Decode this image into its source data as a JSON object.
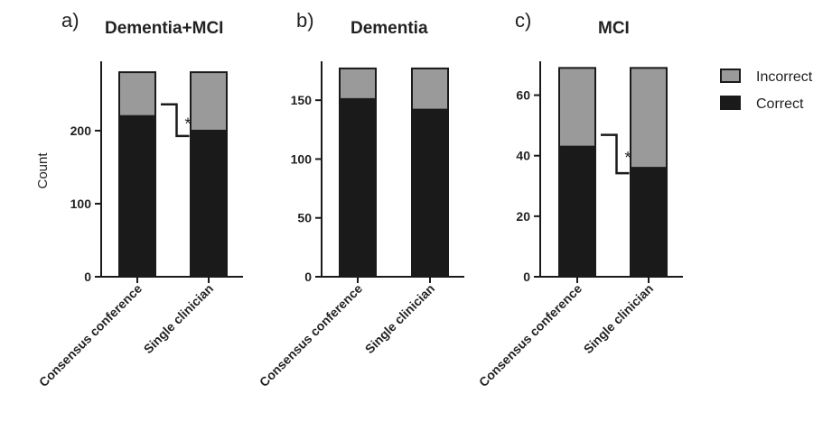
{
  "chart_data": [
    {
      "type": "bar",
      "stacked": true,
      "panel": "a)",
      "title": "Dementia+MCI",
      "ylabel": "Count",
      "ylim": [
        0,
        290
      ],
      "yticks": [
        0,
        100,
        200
      ],
      "categories": [
        "Consensus conference",
        "Single clinician"
      ],
      "series": [
        {
          "name": "Correct",
          "values": [
            220,
            200
          ],
          "color": "#1a1a1a"
        },
        {
          "name": "Incorrect",
          "values": [
            60,
            80
          ],
          "color": "#9a9a9a"
        }
      ],
      "significance": "*"
    },
    {
      "type": "bar",
      "stacked": true,
      "panel": "b)",
      "title": "Dementia",
      "ylabel": "",
      "ylim": [
        0,
        180
      ],
      "yticks": [
        0,
        50,
        100,
        150
      ],
      "categories": [
        "Consensus conference",
        "Single clinician"
      ],
      "series": [
        {
          "name": "Correct",
          "values": [
            151,
            142
          ],
          "color": "#1a1a1a"
        },
        {
          "name": "Incorrect",
          "values": [
            26,
            35
          ],
          "color": "#9a9a9a"
        }
      ],
      "significance": ""
    },
    {
      "type": "bar",
      "stacked": true,
      "panel": "c)",
      "title": "MCI",
      "ylabel": "",
      "ylim": [
        0,
        70
      ],
      "yticks": [
        0,
        20,
        40,
        60
      ],
      "categories": [
        "Consensus conference",
        "Single clinician"
      ],
      "series": [
        {
          "name": "Correct",
          "values": [
            43,
            36
          ],
          "color": "#1a1a1a"
        },
        {
          "name": "Incorrect",
          "values": [
            26,
            33
          ],
          "color": "#9a9a9a"
        }
      ],
      "significance": "*"
    }
  ],
  "legend": {
    "placement": "right",
    "items": [
      {
        "label": "Incorrect",
        "color": "#9a9a9a"
      },
      {
        "label": "Correct",
        "color": "#1a1a1a"
      }
    ]
  }
}
